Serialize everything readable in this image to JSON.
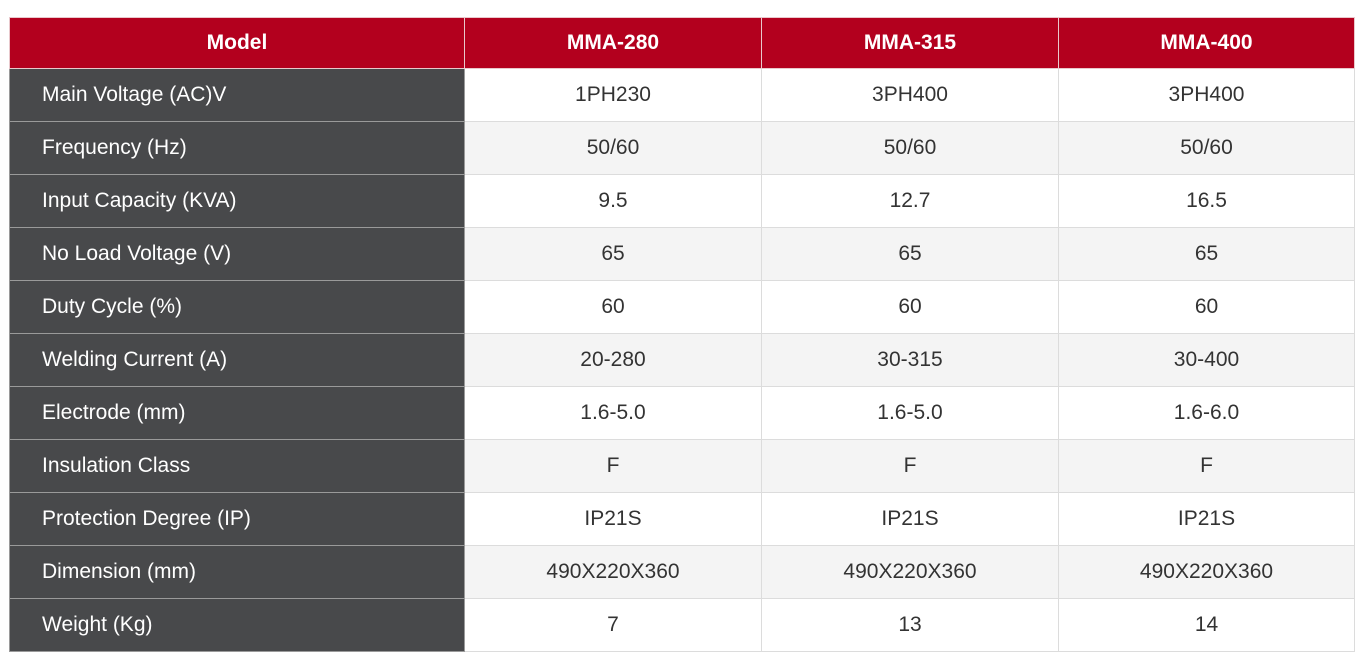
{
  "table": {
    "header": [
      "Model",
      "MMA-280",
      "MMA-315",
      "MMA-400"
    ],
    "rows": [
      [
        "Main Voltage (AC)V",
        "1PH230",
        "3PH400",
        "3PH400"
      ],
      [
        "Frequency (Hz)",
        "50/60",
        "50/60",
        "50/60"
      ],
      [
        "Input Capacity (KVA)",
        "9.5",
        "12.7",
        "16.5"
      ],
      [
        "No Load Voltage (V)",
        "65",
        "65",
        "65"
      ],
      [
        "Duty Cycle (%)",
        "60",
        "60",
        "60"
      ],
      [
        "Welding Current (A)",
        "20-280",
        "30-315",
        "30-400"
      ],
      [
        "Electrode (mm)",
        "1.6-5.0",
        "1.6-5.0",
        "1.6-6.0"
      ],
      [
        "Insulation Class",
        "F",
        "F",
        "F"
      ],
      [
        "Protection Degree (IP)",
        "IP21S",
        "IP21S",
        "IP21S"
      ],
      [
        "Dimension (mm)",
        "490X220X360",
        "490X220X360",
        "490X220X360"
      ],
      [
        "Weight (Kg)",
        "7",
        "13",
        "14"
      ]
    ]
  }
}
